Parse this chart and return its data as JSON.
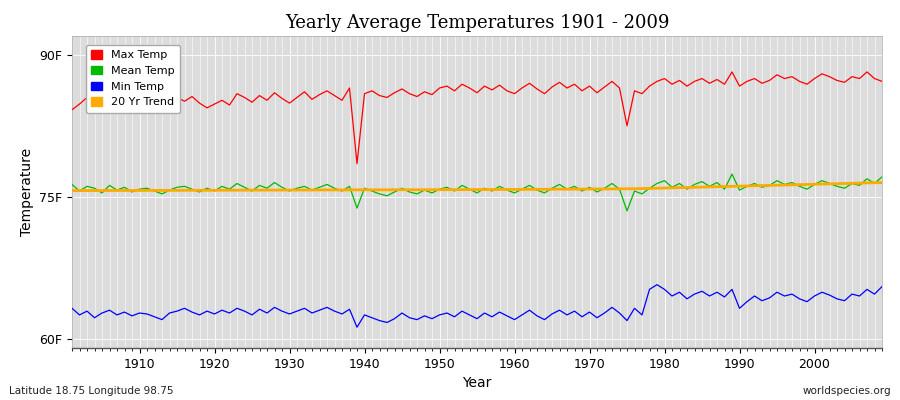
{
  "title": "Yearly Average Temperatures 1901 - 2009",
  "xlabel": "Year",
  "ylabel": "Temperature",
  "years_start": 1901,
  "years_end": 2009,
  "ytick_labels": [
    "60F",
    "75F",
    "90F"
  ],
  "ytick_vals": [
    60,
    75,
    90
  ],
  "ylim": [
    59,
    92
  ],
  "xlim": [
    1901,
    2009
  ],
  "bg_color": "#dcdcdc",
  "grid_color": "#ffffff",
  "max_temp_color": "#ff0000",
  "mean_temp_color": "#00bb00",
  "min_temp_color": "#0000ff",
  "trend_color": "#ffaa00",
  "legend_labels": [
    "Max Temp",
    "Mean Temp",
    "Min Temp",
    "20 Yr Trend"
  ],
  "footnote_left": "Latitude 18.75 Longitude 98.75",
  "footnote_right": "worldspecies.org",
  "max_temps": [
    84.2,
    84.8,
    85.5,
    84.7,
    85.2,
    85.0,
    84.5,
    85.3,
    84.8,
    84.6,
    85.0,
    85.4,
    84.3,
    85.0,
    85.5,
    85.1,
    85.6,
    84.9,
    84.4,
    84.8,
    85.2,
    84.7,
    85.9,
    85.5,
    85.0,
    85.7,
    85.2,
    86.0,
    85.4,
    84.9,
    85.5,
    86.1,
    85.3,
    85.8,
    86.2,
    85.7,
    85.2,
    86.5,
    78.5,
    85.9,
    86.2,
    85.7,
    85.5,
    86.0,
    86.4,
    85.9,
    85.6,
    86.1,
    85.8,
    86.5,
    86.7,
    86.2,
    86.9,
    86.5,
    86.0,
    86.7,
    86.3,
    86.8,
    86.2,
    85.9,
    86.5,
    87.0,
    86.4,
    85.9,
    86.6,
    87.1,
    86.5,
    86.9,
    86.2,
    86.7,
    86.0,
    86.6,
    87.2,
    86.5,
    82.5,
    86.2,
    85.9,
    86.7,
    87.2,
    87.5,
    86.9,
    87.3,
    86.7,
    87.2,
    87.5,
    87.0,
    87.4,
    86.9,
    88.2,
    86.7,
    87.2,
    87.5,
    87.0,
    87.3,
    87.9,
    87.5,
    87.7,
    87.2,
    86.9,
    87.5,
    88.0,
    87.7,
    87.3,
    87.1,
    87.7,
    87.5,
    88.2,
    87.5,
    87.2
  ],
  "mean_temps": [
    76.3,
    75.6,
    76.1,
    75.9,
    75.4,
    76.2,
    75.7,
    76.0,
    75.5,
    75.8,
    75.9,
    75.6,
    75.3,
    75.7,
    76.0,
    76.1,
    75.8,
    75.5,
    75.9,
    75.6,
    76.1,
    75.8,
    76.4,
    76.0,
    75.6,
    76.2,
    75.9,
    76.5,
    76.0,
    75.6,
    75.9,
    76.1,
    75.7,
    76.0,
    76.3,
    75.9,
    75.6,
    76.1,
    73.8,
    75.9,
    75.6,
    75.3,
    75.1,
    75.5,
    75.9,
    75.5,
    75.3,
    75.7,
    75.4,
    75.8,
    76.0,
    75.6,
    76.2,
    75.8,
    75.4,
    75.9,
    75.6,
    76.1,
    75.7,
    75.4,
    75.8,
    76.2,
    75.7,
    75.4,
    75.9,
    76.3,
    75.8,
    76.1,
    75.6,
    76.0,
    75.5,
    75.9,
    76.4,
    75.8,
    73.5,
    75.6,
    75.3,
    75.9,
    76.4,
    76.7,
    76.0,
    76.4,
    75.8,
    76.3,
    76.6,
    76.1,
    76.5,
    75.8,
    77.4,
    75.7,
    76.1,
    76.4,
    76.0,
    76.2,
    76.7,
    76.3,
    76.5,
    76.1,
    75.8,
    76.3,
    76.7,
    76.4,
    76.1,
    75.9,
    76.4,
    76.2,
    76.9,
    76.4,
    77.1
  ],
  "min_temps": [
    63.2,
    62.5,
    62.9,
    62.2,
    62.7,
    63.0,
    62.5,
    62.8,
    62.4,
    62.7,
    62.6,
    62.3,
    62.0,
    62.7,
    62.9,
    63.2,
    62.8,
    62.5,
    62.9,
    62.6,
    63.0,
    62.7,
    63.2,
    62.9,
    62.5,
    63.1,
    62.7,
    63.3,
    62.9,
    62.6,
    62.9,
    63.2,
    62.7,
    63.0,
    63.3,
    62.9,
    62.6,
    63.1,
    61.2,
    62.5,
    62.2,
    61.9,
    61.7,
    62.1,
    62.7,
    62.2,
    62.0,
    62.4,
    62.1,
    62.5,
    62.7,
    62.3,
    62.9,
    62.5,
    62.1,
    62.7,
    62.3,
    62.8,
    62.4,
    62.0,
    62.5,
    63.0,
    62.4,
    62.0,
    62.6,
    63.0,
    62.5,
    62.9,
    62.3,
    62.8,
    62.2,
    62.7,
    63.3,
    62.7,
    61.9,
    63.2,
    62.5,
    65.2,
    65.7,
    65.2,
    64.5,
    64.9,
    64.2,
    64.7,
    65.0,
    64.5,
    64.9,
    64.4,
    65.2,
    63.2,
    63.9,
    64.5,
    64.0,
    64.3,
    64.9,
    64.5,
    64.7,
    64.2,
    63.9,
    64.5,
    64.9,
    64.6,
    64.2,
    64.0,
    64.7,
    64.5,
    65.2,
    64.7,
    65.5
  ],
  "trend_temps": [
    75.65,
    75.65,
    75.65,
    75.65,
    75.65,
    75.66,
    75.66,
    75.66,
    75.66,
    75.66,
    75.67,
    75.67,
    75.67,
    75.67,
    75.67,
    75.68,
    75.68,
    75.68,
    75.68,
    75.68,
    75.69,
    75.69,
    75.69,
    75.69,
    75.7,
    75.7,
    75.7,
    75.7,
    75.7,
    75.71,
    75.71,
    75.71,
    75.71,
    75.72,
    75.72,
    75.72,
    75.72,
    75.72,
    75.73,
    75.73,
    75.73,
    75.73,
    75.73,
    75.74,
    75.74,
    75.74,
    75.74,
    75.74,
    75.74,
    75.75,
    75.75,
    75.75,
    75.75,
    75.76,
    75.76,
    75.76,
    75.76,
    75.77,
    75.77,
    75.77,
    75.78,
    75.78,
    75.78,
    75.79,
    75.79,
    75.8,
    75.8,
    75.8,
    75.81,
    75.81,
    75.82,
    75.82,
    75.83,
    75.83,
    75.84,
    75.85,
    75.86,
    75.88,
    75.9,
    75.92,
    75.94,
    75.96,
    75.98,
    76.0,
    76.02,
    76.04,
    76.06,
    76.08,
    76.1,
    76.12,
    76.14,
    76.16,
    76.18,
    76.2,
    76.22,
    76.24,
    76.26,
    76.28,
    76.3,
    76.32,
    76.34,
    76.36,
    76.38,
    76.4,
    76.42,
    76.44,
    76.46,
    76.48,
    76.5
  ]
}
